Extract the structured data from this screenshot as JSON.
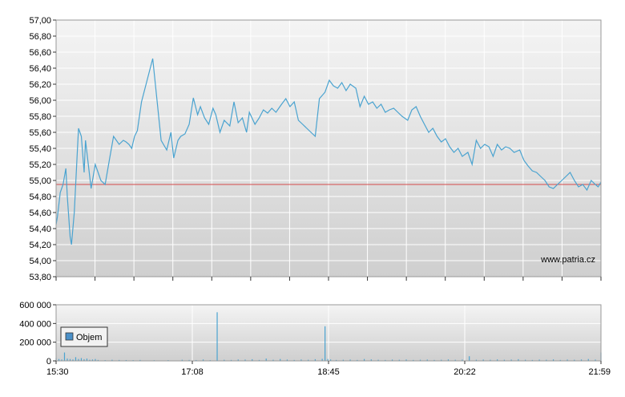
{
  "watermark": "www.patria.cz",
  "colors": {
    "price_line": "#4aa3d0",
    "reference_line": "#d44a4a",
    "volume_bar": "#4aa3d0",
    "legend_swatch": "#4a90c8",
    "grid": "#ffffff",
    "plot_top": "#f4f4f4",
    "plot_bottom": "#cfcfcf"
  },
  "chart_data": [
    {
      "type": "line",
      "title": "",
      "xlabel": "",
      "ylabel": "",
      "ylim": [
        53.8,
        57.0
      ],
      "xlim": [
        "15:30",
        "21:59"
      ],
      "grid": true,
      "y_ticks": [
        "57,00",
        "56,80",
        "56,60",
        "56,40",
        "56,20",
        "56,00",
        "55,80",
        "55,60",
        "55,40",
        "55,20",
        "55,00",
        "54,80",
        "54,60",
        "54,40",
        "54,20",
        "54,00",
        "53,80"
      ],
      "x_ticks": [
        "15:30",
        "17:08",
        "18:45",
        "20:22",
        "21:59"
      ],
      "reference_line": 54.95,
      "series": [
        {
          "x": [
            "15:30",
            "15:31",
            "15:33",
            "15:35",
            "15:37",
            "15:38",
            "15:40",
            "15:41",
            "15:43",
            "15:45",
            "15:46",
            "15:48",
            "15:50",
            "15:51",
            "15:53",
            "15:55",
            "15:58",
            "16:02",
            "16:05",
            "16:08",
            "16:11",
            "16:15",
            "16:18",
            "16:20",
            "16:22",
            "16:24",
            "16:26",
            "16:28",
            "16:31",
            "16:39",
            "16:45",
            "16:49",
            "16:52",
            "16:54",
            "16:57",
            "16:59",
            "17:02",
            "17:05",
            "17:08",
            "17:11",
            "17:13",
            "17:16",
            "17:19",
            "17:22",
            "17:24",
            "17:27",
            "17:30",
            "17:34",
            "17:37",
            "17:40",
            "17:43",
            "17:46",
            "17:48",
            "17:52",
            "17:55",
            "17:58",
            "18:01",
            "18:04",
            "18:07",
            "18:11",
            "18:14",
            "18:17",
            "18:20",
            "18:23",
            "18:26",
            "18:29",
            "18:32",
            "18:35",
            "18:38",
            "18:42",
            "18:45",
            "18:48",
            "18:51",
            "18:54",
            "18:57",
            "19:00",
            "19:04",
            "19:07",
            "19:10",
            "19:13",
            "19:16",
            "19:19",
            "19:22",
            "19:25",
            "19:28",
            "19:31",
            "19:34",
            "19:37",
            "19:41",
            "19:44",
            "19:47",
            "19:50",
            "19:53",
            "19:56",
            "19:59",
            "20:02",
            "20:05",
            "20:08",
            "20:11",
            "20:14",
            "20:17",
            "20:20",
            "20:24",
            "20:27",
            "20:30",
            "20:33",
            "20:36",
            "20:39",
            "20:42",
            "20:45",
            "20:48",
            "20:51",
            "20:54",
            "20:57",
            "21:01",
            "21:04",
            "21:07",
            "21:10",
            "21:13",
            "21:16",
            "21:19",
            "21:22",
            "21:25",
            "21:28",
            "21:31",
            "21:34",
            "21:37",
            "21:40",
            "21:43",
            "21:46",
            "21:49",
            "21:52",
            "21:55",
            "21:57",
            "21:59"
          ],
          "y": [
            54.45,
            54.55,
            54.85,
            54.95,
            55.15,
            54.8,
            54.3,
            54.2,
            54.6,
            55.3,
            55.65,
            55.55,
            55.1,
            55.5,
            55.2,
            54.9,
            55.2,
            55.0,
            54.95,
            55.25,
            55.55,
            55.45,
            55.5,
            55.48,
            55.45,
            55.4,
            55.55,
            55.62,
            55.98,
            56.52,
            55.5,
            55.38,
            55.6,
            55.28,
            55.5,
            55.55,
            55.58,
            55.7,
            56.03,
            55.82,
            55.92,
            55.78,
            55.7,
            55.9,
            55.82,
            55.6,
            55.75,
            55.68,
            55.98,
            55.72,
            55.78,
            55.6,
            55.85,
            55.7,
            55.78,
            55.88,
            55.84,
            55.9,
            55.85,
            55.95,
            56.02,
            55.92,
            55.98,
            55.75,
            55.7,
            55.65,
            55.6,
            55.55,
            56.02,
            56.1,
            56.25,
            56.18,
            56.15,
            56.22,
            56.12,
            56.2,
            56.15,
            55.92,
            56.05,
            55.95,
            55.98,
            55.9,
            55.95,
            55.85,
            55.88,
            55.9,
            55.85,
            55.8,
            55.75,
            55.88,
            55.92,
            55.8,
            55.7,
            55.6,
            55.65,
            55.55,
            55.48,
            55.52,
            55.42,
            55.35,
            55.4,
            55.3,
            55.35,
            55.2,
            55.5,
            55.4,
            55.45,
            55.42,
            55.3,
            55.45,
            55.38,
            55.42,
            55.4,
            55.35,
            55.38,
            55.25,
            55.18,
            55.12,
            55.1,
            55.05,
            55.0,
            54.92,
            54.9,
            54.95,
            55.0,
            55.05,
            55.1,
            55.0,
            54.92,
            54.95,
            54.88,
            55.0,
            54.95,
            54.92,
            54.98
          ],
          "style": "line"
        }
      ]
    },
    {
      "type": "bar",
      "title": "",
      "xlabel": "",
      "ylabel": "",
      "ylim": [
        0,
        600000
      ],
      "xlim": [
        "15:30",
        "21:59"
      ],
      "grid": true,
      "y_ticks": [
        "600 000",
        "400 000",
        "200 000",
        "0"
      ],
      "x_ticks": [
        "15:30",
        "17:08",
        "18:45",
        "20:22",
        "21:59"
      ],
      "legend": {
        "entries": [
          "Objem"
        ],
        "position": "left"
      },
      "series": [
        {
          "name": "Objem",
          "x": [
            "15:30",
            "15:32",
            "15:34",
            "15:36",
            "15:38",
            "15:40",
            "15:42",
            "15:44",
            "15:46",
            "15:48",
            "15:50",
            "15:52",
            "15:54",
            "15:56",
            "15:58",
            "16:00",
            "16:05",
            "16:10",
            "16:15",
            "16:20",
            "16:25",
            "16:30",
            "16:40",
            "16:50",
            "17:00",
            "17:05",
            "17:10",
            "17:15",
            "17:20",
            "17:25",
            "17:30",
            "17:35",
            "17:40",
            "17:45",
            "17:50",
            "17:55",
            "18:00",
            "18:05",
            "18:10",
            "18:15",
            "18:20",
            "18:25",
            "18:30",
            "18:35",
            "18:40",
            "18:42",
            "18:44",
            "18:46",
            "18:50",
            "18:55",
            "19:00",
            "19:05",
            "19:10",
            "19:15",
            "19:20",
            "19:25",
            "19:30",
            "19:35",
            "19:40",
            "19:45",
            "19:50",
            "19:55",
            "20:00",
            "20:05",
            "20:10",
            "20:15",
            "20:20",
            "20:25",
            "20:30",
            "20:35",
            "20:40",
            "20:45",
            "20:50",
            "20:55",
            "21:00",
            "21:05",
            "21:10",
            "21:15",
            "21:20",
            "21:25",
            "21:30",
            "21:35",
            "21:40",
            "21:45",
            "21:50",
            "21:55",
            "21:59"
          ],
          "values": [
            30000,
            20000,
            15000,
            90000,
            25000,
            20000,
            15000,
            40000,
            20000,
            30000,
            18000,
            25000,
            12000,
            15000,
            20000,
            10000,
            8000,
            12000,
            10000,
            9000,
            8000,
            10000,
            7000,
            8000,
            12000,
            10000,
            9000,
            15000,
            8000,
            520000,
            12000,
            10000,
            15000,
            14000,
            18000,
            10000,
            25000,
            12000,
            20000,
            14000,
            10000,
            15000,
            12000,
            18000,
            22000,
            370000,
            20000,
            15000,
            10000,
            12000,
            14000,
            10000,
            20000,
            16000,
            12000,
            10000,
            14000,
            12000,
            15000,
            10000,
            12000,
            14000,
            10000,
            12000,
            16000,
            12000,
            14000,
            50000,
            12000,
            14000,
            12000,
            16000,
            12000,
            14000,
            18000,
            12000,
            10000,
            14000,
            12000,
            16000,
            10000,
            14000,
            12000,
            15000,
            20000,
            14000,
            90000
          ]
        }
      ]
    }
  ]
}
